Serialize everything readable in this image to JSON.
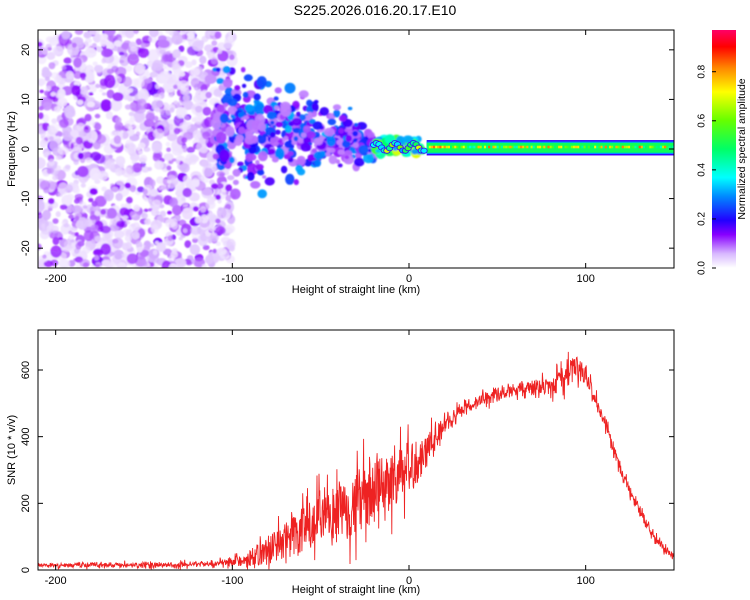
{
  "title": "S225.2026.016.20.17.E10",
  "chart_data": [
    {
      "type": "heatmap",
      "name": "spectrogram",
      "xlabel": "Height of straight line (km)",
      "ylabel": "Frequency (Hz)",
      "xlim": [
        -210,
        150
      ],
      "ylim": [
        -24,
        24
      ],
      "xticks": [
        -200,
        -100,
        0,
        100
      ],
      "yticks": [
        -20,
        -10,
        0,
        10,
        20
      ],
      "colorbar": {
        "label": "Normalized spectral amplitude",
        "range": [
          0,
          0.97
        ],
        "ticks": [
          0.0,
          0.2,
          0.4,
          0.6,
          0.8
        ]
      },
      "regions": [
        {
          "desc": "diffuse noise",
          "x_range": [
            -210,
            -100
          ],
          "f_range": [
            -24,
            24
          ],
          "amplitude": [
            0.02,
            0.15
          ]
        },
        {
          "desc": "scattered signal",
          "x_range": [
            -110,
            -20
          ],
          "f_range": [
            -8,
            12
          ],
          "amplitude": [
            0.08,
            0.3
          ]
        },
        {
          "desc": "emerging carrier",
          "x_range": [
            -20,
            10
          ],
          "f_range": [
            -1,
            2
          ],
          "amplitude": [
            0.3,
            0.7
          ]
        },
        {
          "desc": "stable carrier",
          "x_range": [
            10,
            150
          ],
          "f_range": [
            -1,
            1.5
          ],
          "amplitude": [
            0.4,
            0.85
          ]
        }
      ]
    },
    {
      "type": "line",
      "name": "snr",
      "xlabel": "Height of straight line (km)",
      "ylabel": "SNR (10 * v/v)",
      "xlim": [
        -210,
        150
      ],
      "ylim": [
        0,
        720
      ],
      "xticks": [
        -200,
        -100,
        0,
        100
      ],
      "yticks": [
        0,
        200,
        400,
        600
      ],
      "color": "#ee2222",
      "envelope": {
        "x": [
          -210,
          -150,
          -110,
          -100,
          -90,
          -80,
          -70,
          -60,
          -50,
          -40,
          -30,
          -20,
          -10,
          0,
          10,
          20,
          30,
          40,
          50,
          60,
          70,
          80,
          90,
          95,
          100,
          110,
          120,
          130,
          140,
          150
        ],
        "mean": [
          15,
          15,
          18,
          25,
          35,
          60,
          90,
          120,
          140,
          170,
          200,
          230,
          270,
          300,
          360,
          430,
          480,
          510,
          530,
          540,
          545,
          555,
          590,
          620,
          580,
          450,
          300,
          180,
          90,
          40
        ],
        "noise": [
          6,
          8,
          10,
          15,
          25,
          45,
          60,
          75,
          80,
          90,
          95,
          95,
          90,
          85,
          50,
          30,
          25,
          22,
          20,
          20,
          25,
          30,
          40,
          45,
          30,
          25,
          20,
          18,
          15,
          12
        ]
      }
    }
  ]
}
